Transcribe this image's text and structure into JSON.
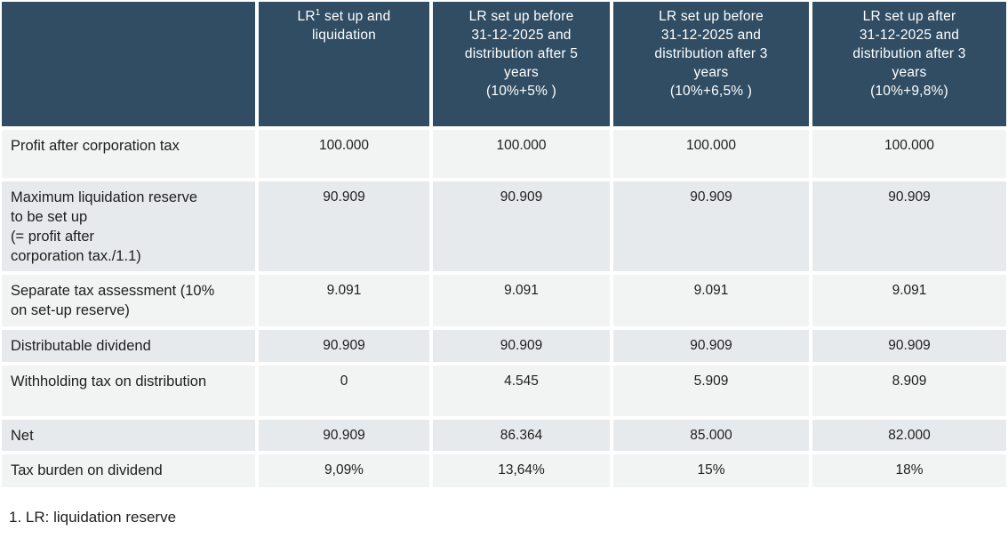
{
  "table": {
    "columns": [
      {
        "label": ""
      },
      {
        "label": "LR¹ set up and\nliquidation"
      },
      {
        "label": "LR set up before\n31-12-2025 and\ndistribution after 5\nyears\n(10%+5% )"
      },
      {
        "label": "LR set up before\n31-12-2025 and\ndistribution after 3\nyears\n(10%+6,5% )"
      },
      {
        "label": "LR set up after\n31-12-2025 and\ndistribution after 3\nyears\n(10%+9,8%)"
      }
    ],
    "rows": [
      {
        "label": "Profit after corporation tax",
        "values": [
          "100.000",
          "100.000",
          "100.000",
          "100.000"
        ]
      },
      {
        "label": "Maximum liquidation reserve\nto be set up\n(= profit after\ncorporation tax./1.1)",
        "values": [
          "90.909",
          "90.909",
          "90.909",
          "90.909"
        ]
      },
      {
        "label": "Separate tax assessment (10%\non set-up reserve)",
        "values": [
          "9.091",
          "9.091",
          "9.091",
          "9.091"
        ]
      },
      {
        "label": "Distributable dividend",
        "values": [
          "90.909",
          "90.909",
          "90.909",
          "90.909"
        ]
      },
      {
        "label": "Withholding tax on distribution",
        "values": [
          "0",
          "4.545",
          "5.909",
          "8.909"
        ]
      },
      {
        "label": "Net",
        "values": [
          "90.909",
          "86.364",
          "85.000",
          "82.000"
        ]
      },
      {
        "label": "Tax burden on dividend",
        "values": [
          "9,09%",
          "13,64%",
          "15%",
          "18%"
        ]
      }
    ]
  },
  "footnote": "1. LR: liquidation reserve",
  "colors": {
    "header_bg": "#304d63",
    "header_text": "#ffffff",
    "row_light": "#f2f3f3",
    "row_alt": "#e7eaec",
    "body_text": "#1e1e1e"
  }
}
